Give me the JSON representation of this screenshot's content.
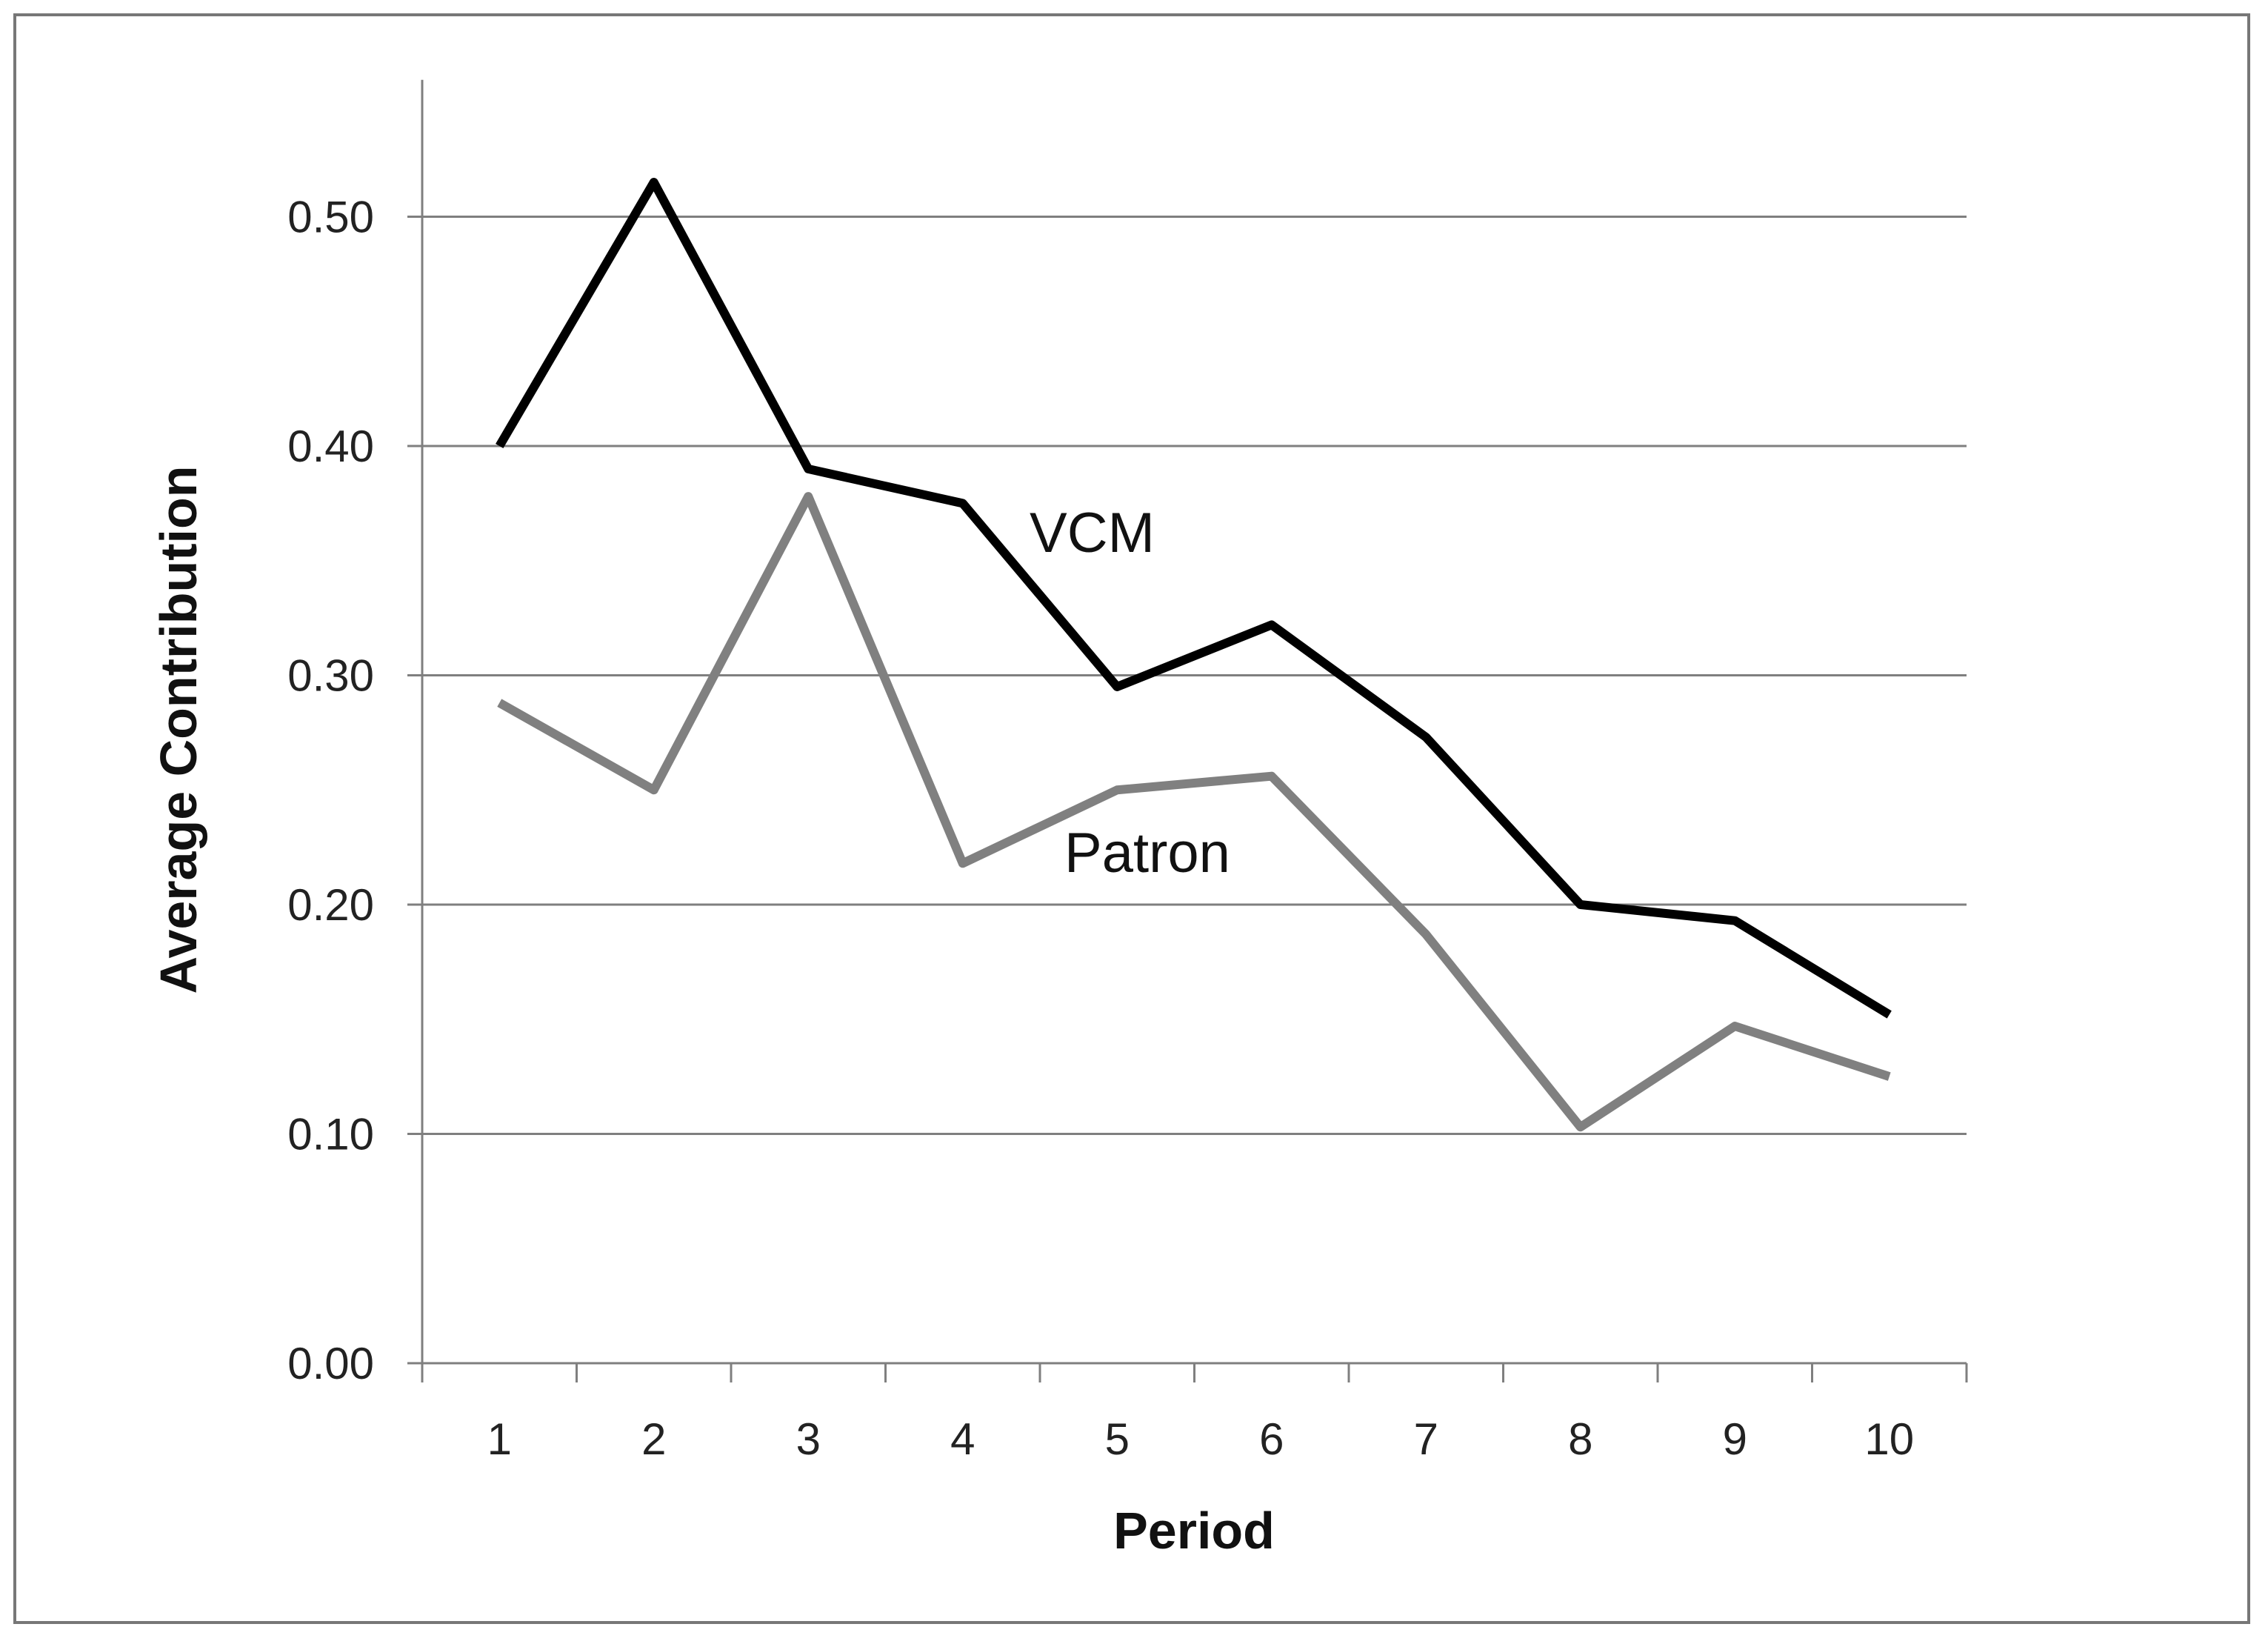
{
  "chart_data": {
    "type": "line",
    "title": "",
    "xlabel": "Period",
    "ylabel": "Average Contribution",
    "categories": [
      "1",
      "2",
      "3",
      "4",
      "5",
      "6",
      "7",
      "8",
      "9",
      "10"
    ],
    "ylim": [
      0,
      0.55
    ],
    "y_ticks": [
      "0.00",
      "0.10",
      "0.20",
      "0.30",
      "0.40",
      "0.50"
    ],
    "y_tick_values": [
      0,
      0.1,
      0.2,
      0.3,
      0.4,
      0.5
    ],
    "grid": "horizontal",
    "series": [
      {
        "name": "VCM",
        "color": "#000000",
        "values": [
          0.4,
          0.515,
          0.39,
          0.375,
          0.295,
          0.322,
          0.273,
          0.2,
          0.193,
          0.152
        ]
      },
      {
        "name": "Patron",
        "color": "#808080",
        "values": [
          0.288,
          0.25,
          0.378,
          0.218,
          0.25,
          0.256,
          0.187,
          0.103,
          0.147,
          0.125
        ]
      }
    ]
  }
}
